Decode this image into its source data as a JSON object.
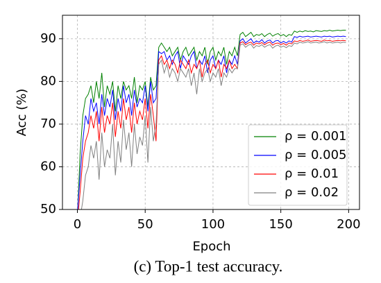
{
  "chart_data": {
    "type": "line",
    "caption": "(c) Top-1 test accuracy.",
    "xlabel": "Epoch",
    "ylabel": "Acc (%)",
    "x": [
      0,
      2,
      4,
      6,
      8,
      10,
      12,
      14,
      16,
      18,
      20,
      22,
      24,
      26,
      28,
      30,
      32,
      34,
      36,
      38,
      40,
      42,
      44,
      46,
      48,
      50,
      52,
      54,
      56,
      58,
      60,
      62,
      64,
      66,
      68,
      70,
      72,
      74,
      76,
      78,
      80,
      82,
      84,
      86,
      88,
      90,
      92,
      94,
      96,
      98,
      100,
      102,
      104,
      106,
      108,
      110,
      112,
      114,
      116,
      118,
      120,
      122,
      124,
      126,
      128,
      130,
      132,
      134,
      136,
      138,
      140,
      142,
      144,
      146,
      148,
      150,
      152,
      154,
      156,
      158,
      160,
      162,
      164,
      166,
      168,
      170,
      172,
      174,
      176,
      178,
      180,
      182,
      184,
      186,
      188,
      190,
      192,
      194,
      196,
      198
    ],
    "series": [
      {
        "name": "ρ = 0.001",
        "color": "#008000",
        "values": [
          48,
          63,
          72,
          76,
          77,
          79,
          75,
          80,
          76,
          82,
          74,
          79,
          77,
          80,
          73,
          79,
          76,
          80,
          78,
          79,
          76,
          81,
          75,
          79,
          78,
          80,
          74,
          81,
          78,
          79,
          88,
          89,
          88,
          87,
          88,
          86,
          87,
          88,
          85,
          87,
          88,
          86,
          87,
          88,
          85,
          87,
          86,
          88,
          84,
          87,
          88,
          85,
          87,
          86,
          88,
          84,
          87,
          86,
          88,
          86,
          91,
          91.5,
          90.5,
          91,
          91.5,
          90.5,
          91,
          90.8,
          91.2,
          90.5,
          91,
          91.3,
          90.6,
          91,
          91.2,
          90.7,
          91,
          90.5,
          91,
          90.8,
          91.8,
          91.5,
          91.8,
          91.6,
          91.9,
          91.7,
          91.8,
          91.6,
          91.9,
          91.8,
          91.7,
          91.9,
          91.8,
          92,
          91.8,
          91.9,
          92,
          91.9,
          92,
          92
        ]
      },
      {
        "name": "ρ = 0.005",
        "color": "#0000ff",
        "values": [
          49,
          58,
          66,
          72,
          70,
          76,
          73,
          75,
          70,
          77,
          72,
          76,
          74,
          78,
          71,
          76,
          73,
          79,
          75,
          77,
          72,
          78,
          74,
          76,
          75,
          79,
          73,
          80,
          75,
          76,
          87,
          86.5,
          87,
          85,
          86,
          84,
          86,
          87,
          83,
          86,
          85,
          84,
          86,
          87,
          83,
          85,
          84,
          86,
          82,
          85,
          86,
          83,
          85,
          84,
          86,
          82,
          85,
          84,
          86,
          84,
          89.5,
          90,
          89,
          89.5,
          90,
          89,
          89.5,
          89.2,
          89.8,
          89,
          89.5,
          89.7,
          89,
          89.5,
          89.6,
          89,
          89.4,
          89,
          89.5,
          89.2,
          90.5,
          90.3,
          90.6,
          90.4,
          90.5,
          90.6,
          90.4,
          90.5,
          90.6,
          90.5,
          90.4,
          90.6,
          90.5,
          90.6,
          90.4,
          90.5,
          90.6,
          90.5,
          90.6,
          90.5
        ]
      },
      {
        "name": "ρ = 0.01",
        "color": "#ff0000",
        "values": [
          47,
          54,
          62,
          66,
          68,
          72,
          69,
          73,
          66,
          74,
          68,
          72,
          70,
          75,
          67,
          73,
          69,
          76,
          71,
          74,
          68,
          75,
          70,
          73,
          71,
          76,
          69,
          77,
          72,
          66,
          85,
          86,
          84,
          85,
          83,
          85,
          84,
          82,
          85,
          84,
          83,
          85,
          82,
          84,
          83,
          85,
          81,
          84,
          85,
          82,
          84,
          83,
          85,
          81,
          84,
          83,
          85,
          83,
          84,
          83,
          89,
          89.3,
          88.6,
          89,
          89.2,
          88.5,
          89,
          88.8,
          89.1,
          88.6,
          89,
          89.2,
          88.5,
          88.9,
          89,
          88.6,
          88.9,
          88.5,
          89,
          88.8,
          89.5,
          89.3,
          89.6,
          89.4,
          89.5,
          89.7,
          89.4,
          89.5,
          89.6,
          89.5,
          89.4,
          89.7,
          89.5,
          89.6,
          89.4,
          89.5,
          89.6,
          89.5,
          89.6,
          89.5
        ]
      },
      {
        "name": "ρ = 0.02",
        "color": "#808080",
        "values": [
          45,
          48,
          52,
          58,
          60,
          65,
          62,
          66,
          57,
          68,
          60,
          64,
          62,
          70,
          58,
          66,
          61,
          71,
          64,
          68,
          60,
          70,
          63,
          67,
          65,
          72,
          61,
          74,
          66,
          70,
          84,
          85,
          82,
          84,
          81,
          83,
          82,
          80,
          83,
          82,
          81,
          83,
          79,
          82,
          77,
          83,
          80,
          82,
          83,
          80,
          82,
          81,
          83,
          79,
          82,
          81,
          83,
          82,
          83,
          83,
          88.5,
          88.8,
          88,
          88.5,
          88.7,
          87.8,
          88.4,
          88.2,
          88.6,
          88,
          88.4,
          88.6,
          87.8,
          88.3,
          88.5,
          88,
          88.3,
          87.9,
          88.4,
          88.2,
          89,
          88.8,
          89.2,
          89,
          89.1,
          89.3,
          89,
          89.1,
          89.2,
          89,
          89.1,
          89.3,
          89,
          89.2,
          89,
          89.1,
          89.2,
          89,
          89.2,
          89.1
        ]
      }
    ],
    "xlim": [
      -11,
      208
    ],
    "ylim": [
      50,
      95.5
    ],
    "xticks": [
      0,
      50,
      100,
      150,
      200
    ],
    "yticks": [
      50,
      60,
      70,
      80,
      90
    ],
    "grid": true,
    "legend": "lower right"
  }
}
